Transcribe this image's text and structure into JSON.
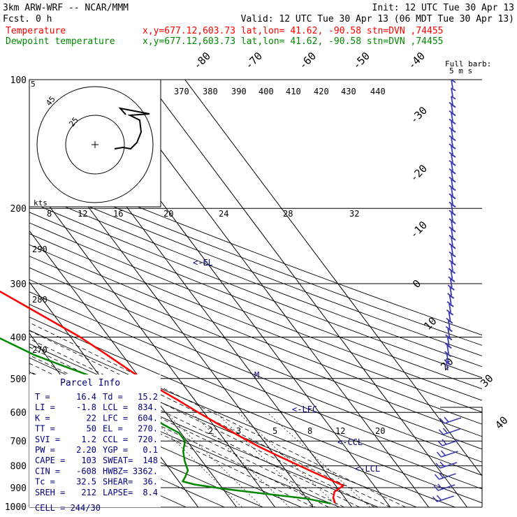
{
  "header": {
    "model": "3km ARW-WRF -- NCAR/MMM",
    "init": "Init: 12 UTC Tue 30 Apr 13",
    "fcst": "Fcst.     0 h",
    "valid": "Valid: 12 UTC Tue 30 Apr 13 (06 MDT Tue 30 Apr 13)",
    "temp_label": "Temperature",
    "temp_info": "x,y=677.12,603.73   lat,lon= 41.62, -90.58   stn=DVN ,74455",
    "dew_label": "Dewpoint temperature",
    "dew_info": "x,y=677.12,603.73   lat,lon= 41.62, -90.58   stn=DVN ,74455"
  },
  "colors": {
    "temperature": "#ff0000",
    "dewpoint": "#008800",
    "annotations": "#00007f",
    "barbs": "#3a3ab0",
    "grid": "#000000"
  },
  "barb_legend": [
    "Full barb:",
    "5 m s"
  ],
  "hodograph": {
    "ring_labels": [
      "5",
      "25",
      "45"
    ],
    "kts_label": "kts"
  },
  "annotations": {
    "el": "<-EL",
    "lfc": "<-LFC",
    "ccl": "<-CCL",
    "lcl": "<-LCL",
    "m": "M"
  },
  "parcel": {
    "title": "Parcel Info",
    "rows": [
      [
        "T   =",
        "16.4",
        "Td =",
        "15.2"
      ],
      [
        "LI  =",
        "-1.8",
        "LCL =",
        "834."
      ],
      [
        "K   =",
        "22",
        "LFC =",
        "604."
      ],
      [
        "TT  =",
        "50",
        "EL  =",
        "270."
      ],
      [
        "SVI =",
        "1.2",
        "CCL =",
        "720."
      ],
      [
        "PW  =",
        "2.20",
        "YGP =",
        "0.1"
      ],
      [
        "CAPE =",
        "103",
        "SWEAT=",
        "148"
      ],
      [
        "CIN  =",
        "-608",
        "HWBZ=",
        "3362."
      ],
      [
        "Tc   =",
        "32.5",
        "SHEAR=",
        "36."
      ],
      [
        "SREH =",
        "212",
        "LAPSE=",
        "8.4"
      ]
    ],
    "cell": "CELL = 244/30"
  },
  "chart_data": {
    "type": "line",
    "title": "",
    "ylabel": "",
    "xlabel": "",
    "y_scale": "log",
    "ylim_hpa": [
      1000,
      100
    ],
    "pressure_ticks": [
      100,
      200,
      300,
      400,
      500,
      600,
      700,
      800,
      900,
      1000
    ],
    "isotherm_labels": [
      "-80",
      "-70",
      "-60",
      "-50",
      "-40",
      "-30",
      "-20",
      "-10",
      "0",
      "10",
      "20",
      "30",
      "40"
    ],
    "theta_labels_top": [
      "370",
      "380",
      "390",
      "400",
      "410",
      "420",
      "430",
      "440"
    ],
    "theta_labels_left": [
      "290",
      "280",
      "270"
    ],
    "mixing_ratio_upper": [
      "8",
      "12",
      "16",
      "20",
      "24",
      "28",
      "32"
    ],
    "mixing_ratio_lower": [
      "2",
      "3",
      "5",
      "8",
      "12",
      "20"
    ],
    "series": [
      {
        "name": "Temperature",
        "pressure": [
          980,
          950,
          920,
          890,
          860,
          830,
          800,
          760,
          720,
          680,
          640,
          600,
          560,
          520,
          480,
          440,
          400,
          350,
          300,
          260,
          230,
          210,
          200,
          180,
          160,
          140,
          125,
          110,
          100
        ],
        "temp_c": [
          16.4,
          17.0,
          18.5,
          22.0,
          19.5,
          17.0,
          14.5,
          11.0,
          7.5,
          4.5,
          1.5,
          -1.5,
          -4.5,
          -8.0,
          -11.0,
          -14.0,
          -17.5,
          -24.0,
          -31.5,
          -39.0,
          -45.5,
          -50.5,
          -53.5,
          -55.0,
          -52.0,
          -52.0,
          -52.5,
          -54.0,
          -55.5
        ]
      },
      {
        "name": "Dewpoint temperature",
        "pressure": [
          980,
          955,
          930,
          905,
          885,
          870,
          850,
          820,
          780,
          740,
          700,
          670,
          640,
          600,
          560,
          520,
          490,
          470,
          440,
          400,
          350,
          300,
          260,
          230,
          210,
          200,
          180,
          160,
          140,
          120,
          110,
          100
        ],
        "temp_c": [
          15.2,
          10.0,
          0.0,
          -10.0,
          -16.5,
          -19.0,
          -17.5,
          -15.5,
          -14.5,
          -13.0,
          -10.5,
          -10.5,
          -13.0,
          -15.0,
          -18.0,
          -21.0,
          -23.0,
          -27.0,
          -33.0,
          -39.0,
          -47.0,
          -55.0,
          -62.0,
          -65.5,
          -68.0,
          -69.0,
          -67.5,
          -65.0,
          -64.0,
          -66.5,
          -69.0,
          -70.0
        ]
      }
    ],
    "wind_barbs_ms": [
      5,
      5,
      5,
      10,
      10,
      10,
      10,
      10,
      10,
      10,
      10,
      10,
      10,
      10,
      10,
      10,
      10,
      10,
      10,
      10,
      10,
      10,
      10,
      10,
      10,
      10,
      10,
      10,
      10,
      10,
      10,
      10,
      10,
      10,
      10
    ]
  }
}
